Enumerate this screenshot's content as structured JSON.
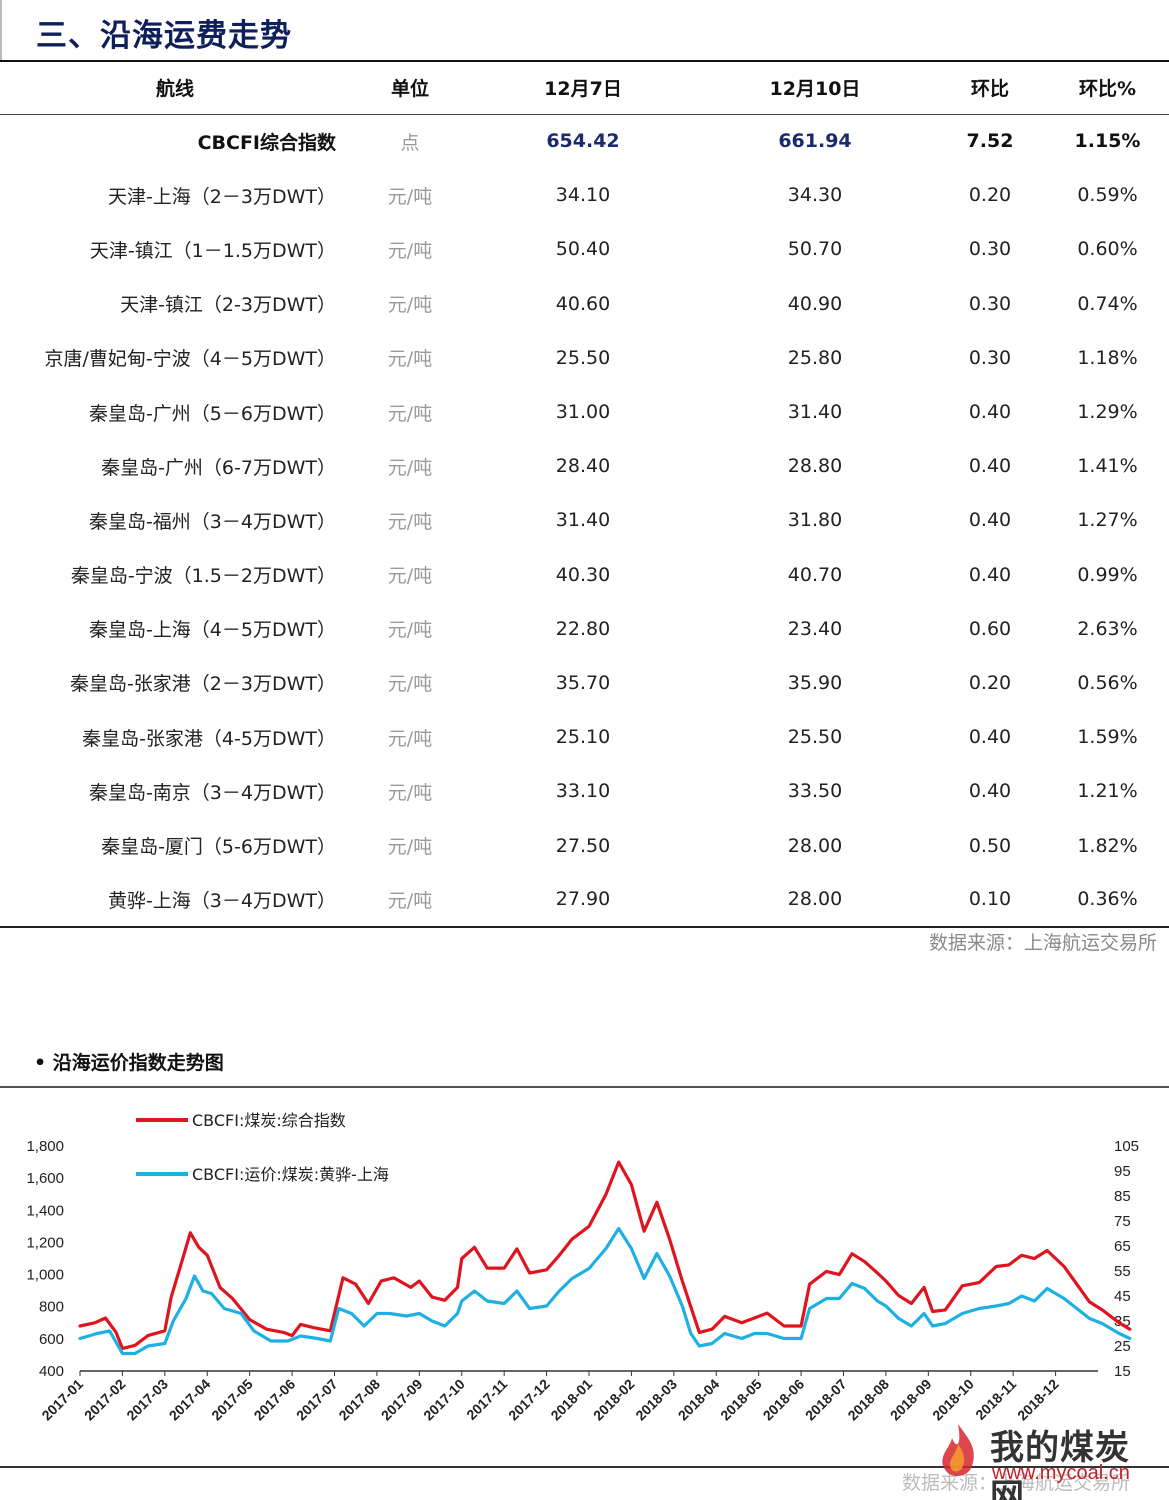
{
  "section": {
    "title": "三、沿海运费走势"
  },
  "table": {
    "headers": [
      "航线",
      "单位",
      "12月7日",
      "12月10日",
      "环比",
      "环比%"
    ],
    "rows": [
      [
        "CBCFI综合指数",
        "点",
        "654.42",
        "661.94",
        "7.52",
        "1.15%"
      ],
      [
        "天津-上海（2－3万DWT）",
        "元/吨",
        "34.10",
        "34.30",
        "0.20",
        "0.59%"
      ],
      [
        "天津-镇江（1－1.5万DWT）",
        "元/吨",
        "50.40",
        "50.70",
        "0.30",
        "0.60%"
      ],
      [
        "天津-镇江（2-3万DWT）",
        "元/吨",
        "40.60",
        "40.90",
        "0.30",
        "0.74%"
      ],
      [
        "京唐/曹妃甸-宁波（4－5万DWT）",
        "元/吨",
        "25.50",
        "25.80",
        "0.30",
        "1.18%"
      ],
      [
        "秦皇岛-广州（5－6万DWT）",
        "元/吨",
        "31.00",
        "31.40",
        "0.40",
        "1.29%"
      ],
      [
        "秦皇岛-广州（6-7万DWT）",
        "元/吨",
        "28.40",
        "28.80",
        "0.40",
        "1.41%"
      ],
      [
        "秦皇岛-福州（3－4万DWT）",
        "元/吨",
        "31.40",
        "31.80",
        "0.40",
        "1.27%"
      ],
      [
        "秦皇岛-宁波（1.5－2万DWT）",
        "元/吨",
        "40.30",
        "40.70",
        "0.40",
        "0.99%"
      ],
      [
        "秦皇岛-上海（4－5万DWT）",
        "元/吨",
        "22.80",
        "23.40",
        "0.60",
        "2.63%"
      ],
      [
        "秦皇岛-张家港（2－3万DWT）",
        "元/吨",
        "35.70",
        "35.90",
        "0.20",
        "0.56%"
      ],
      [
        "秦皇岛-张家港（4-5万DWT）",
        "元/吨",
        "25.10",
        "25.50",
        "0.40",
        "1.59%"
      ],
      [
        "秦皇岛-南京（3－4万DWT）",
        "元/吨",
        "33.10",
        "33.50",
        "0.40",
        "1.21%"
      ],
      [
        "秦皇岛-厦门（5-6万DWT）",
        "元/吨",
        "27.50",
        "28.00",
        "0.50",
        "1.82%"
      ],
      [
        "黄骅-上海（3－4万DWT）",
        "元/吨",
        "27.90",
        "28.00",
        "0.10",
        "0.36%"
      ]
    ]
  },
  "source1": "数据来源：上海航运交易所",
  "chart_title": "• 沿海运价指数走势图",
  "chart_data": {
    "type": "line",
    "title": "",
    "x": [
      "2017-01",
      "2017-02",
      "2017-03",
      "2017-04",
      "2017-05",
      "2017-06",
      "2017-07",
      "2017-08",
      "2017-09",
      "2017-10",
      "2017-11",
      "2017-12",
      "2018-01",
      "2018-02",
      "2018-03",
      "2018-04",
      "2018-05",
      "2018-06",
      "2018-07",
      "2018-08",
      "2018-09",
      "2018-10",
      "2018-11",
      "2018-12"
    ],
    "y_left": {
      "ticks": [
        "400",
        "600",
        "800",
        "1,000",
        "1,200",
        "1,400",
        "1,600",
        "1,800"
      ],
      "min": 400,
      "max": 1800
    },
    "y_right": {
      "ticks": [
        "15",
        "25",
        "35",
        "45",
        "55",
        "65",
        "75",
        "85",
        "95",
        "105"
      ],
      "min": 15,
      "max": 105
    },
    "series": [
      {
        "name": "CBCFI:煤炭:综合指数",
        "axis": "left",
        "color": "#e0141e",
        "points": [
          [
            0,
            680
          ],
          [
            0.35,
            700
          ],
          [
            0.6,
            730
          ],
          [
            0.85,
            640
          ],
          [
            1.0,
            540
          ],
          [
            1.3,
            560
          ],
          [
            1.6,
            620
          ],
          [
            2.0,
            650
          ],
          [
            2.15,
            860
          ],
          [
            2.4,
            1080
          ],
          [
            2.6,
            1260
          ],
          [
            2.8,
            1170
          ],
          [
            3.0,
            1120
          ],
          [
            3.3,
            920
          ],
          [
            3.6,
            850
          ],
          [
            4.0,
            720
          ],
          [
            4.4,
            660
          ],
          [
            4.8,
            640
          ],
          [
            5.0,
            620
          ],
          [
            5.2,
            690
          ],
          [
            5.5,
            670
          ],
          [
            5.9,
            650
          ],
          [
            6.2,
            980
          ],
          [
            6.5,
            940
          ],
          [
            6.8,
            820
          ],
          [
            7.1,
            960
          ],
          [
            7.4,
            980
          ],
          [
            7.8,
            920
          ],
          [
            8.0,
            960
          ],
          [
            8.3,
            860
          ],
          [
            8.6,
            840
          ],
          [
            8.9,
            920
          ],
          [
            9.0,
            1100
          ],
          [
            9.3,
            1170
          ],
          [
            9.6,
            1040
          ],
          [
            10.0,
            1040
          ],
          [
            10.3,
            1160
          ],
          [
            10.6,
            1010
          ],
          [
            11.0,
            1030
          ],
          [
            11.3,
            1120
          ],
          [
            11.6,
            1220
          ],
          [
            12.0,
            1300
          ],
          [
            12.4,
            1500
          ],
          [
            12.7,
            1700
          ],
          [
            13.0,
            1560
          ],
          [
            13.3,
            1270
          ],
          [
            13.6,
            1450
          ],
          [
            13.9,
            1220
          ],
          [
            14.2,
            960
          ],
          [
            14.4,
            800
          ],
          [
            14.6,
            640
          ],
          [
            14.9,
            660
          ],
          [
            15.2,
            740
          ],
          [
            15.6,
            700
          ],
          [
            15.9,
            730
          ],
          [
            16.2,
            760
          ],
          [
            16.6,
            680
          ],
          [
            17.0,
            680
          ],
          [
            17.2,
            940
          ],
          [
            17.6,
            1020
          ],
          [
            17.9,
            1000
          ],
          [
            18.2,
            1130
          ],
          [
            18.5,
            1080
          ],
          [
            18.8,
            1010
          ],
          [
            19.0,
            960
          ],
          [
            19.3,
            870
          ],
          [
            19.6,
            820
          ],
          [
            19.9,
            920
          ],
          [
            20.1,
            770
          ],
          [
            20.4,
            780
          ],
          [
            20.8,
            930
          ],
          [
            21.2,
            950
          ],
          [
            21.6,
            1050
          ],
          [
            21.9,
            1060
          ],
          [
            22.2,
            1120
          ],
          [
            22.5,
            1100
          ],
          [
            22.8,
            1150
          ],
          [
            23.2,
            1050
          ],
          [
            23.5,
            940
          ],
          [
            23.8,
            830
          ],
          [
            24.1,
            780
          ],
          [
            24.5,
            700
          ],
          [
            24.75,
            660
          ]
        ]
      },
      {
        "name": "CBCFI:运价:煤炭:黄骅-上海",
        "axis": "right",
        "color": "#1fb0e3",
        "points": [
          [
            0,
            28
          ],
          [
            0.4,
            30
          ],
          [
            0.7,
            31
          ],
          [
            0.9,
            25
          ],
          [
            1.0,
            22
          ],
          [
            1.3,
            22
          ],
          [
            1.6,
            25
          ],
          [
            2.0,
            26
          ],
          [
            2.2,
            35
          ],
          [
            2.5,
            44
          ],
          [
            2.7,
            53
          ],
          [
            2.9,
            47
          ],
          [
            3.1,
            46
          ],
          [
            3.4,
            40
          ],
          [
            3.8,
            38
          ],
          [
            4.1,
            31
          ],
          [
            4.5,
            27
          ],
          [
            4.9,
            27
          ],
          [
            5.2,
            29
          ],
          [
            5.6,
            28
          ],
          [
            5.9,
            27
          ],
          [
            6.1,
            40
          ],
          [
            6.4,
            38
          ],
          [
            6.7,
            33
          ],
          [
            7.0,
            38
          ],
          [
            7.3,
            38
          ],
          [
            7.7,
            37
          ],
          [
            8.0,
            38
          ],
          [
            8.3,
            35
          ],
          [
            8.6,
            33
          ],
          [
            8.9,
            38
          ],
          [
            9.0,
            43
          ],
          [
            9.3,
            47
          ],
          [
            9.6,
            43
          ],
          [
            10.0,
            42
          ],
          [
            10.3,
            47
          ],
          [
            10.6,
            40
          ],
          [
            11.0,
            41
          ],
          [
            11.3,
            47
          ],
          [
            11.6,
            52
          ],
          [
            12.0,
            56
          ],
          [
            12.4,
            64
          ],
          [
            12.7,
            72
          ],
          [
            13.0,
            64
          ],
          [
            13.3,
            52
          ],
          [
            13.6,
            62
          ],
          [
            13.9,
            53
          ],
          [
            14.2,
            41
          ],
          [
            14.4,
            30
          ],
          [
            14.6,
            25
          ],
          [
            14.9,
            26
          ],
          [
            15.2,
            30
          ],
          [
            15.6,
            28
          ],
          [
            15.9,
            30
          ],
          [
            16.2,
            30
          ],
          [
            16.6,
            28
          ],
          [
            17.0,
            28
          ],
          [
            17.2,
            40
          ],
          [
            17.6,
            44
          ],
          [
            17.9,
            44
          ],
          [
            18.2,
            50
          ],
          [
            18.5,
            48
          ],
          [
            18.8,
            43
          ],
          [
            19.0,
            41
          ],
          [
            19.3,
            36
          ],
          [
            19.6,
            33
          ],
          [
            19.9,
            38
          ],
          [
            20.1,
            33
          ],
          [
            20.4,
            34
          ],
          [
            20.8,
            38
          ],
          [
            21.2,
            40
          ],
          [
            21.6,
            41
          ],
          [
            21.9,
            42
          ],
          [
            22.2,
            45
          ],
          [
            22.5,
            43
          ],
          [
            22.8,
            48
          ],
          [
            23.2,
            44
          ],
          [
            23.5,
            40
          ],
          [
            23.8,
            36
          ],
          [
            24.1,
            34
          ],
          [
            24.5,
            30
          ],
          [
            24.75,
            28
          ]
        ]
      }
    ]
  },
  "source2": "数据来源：上海航运交易所",
  "watermark": {
    "name": "我的煤炭网",
    "url": "www.mycoal.cn"
  }
}
